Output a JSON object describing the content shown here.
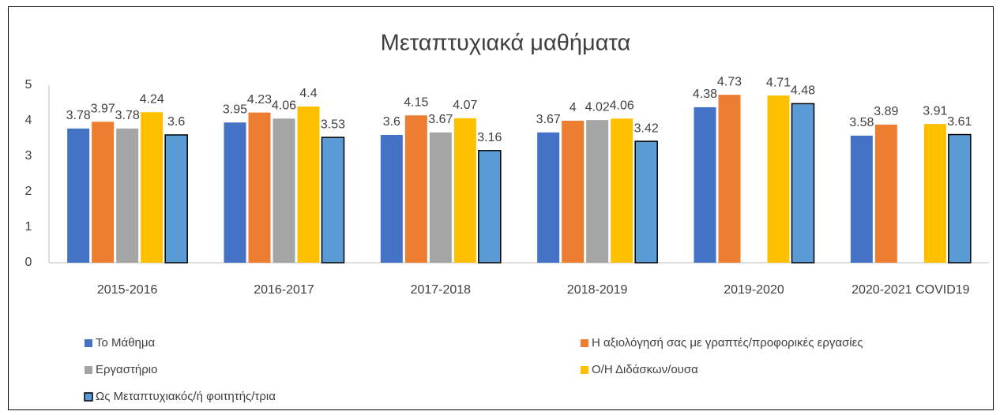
{
  "chart_data": {
    "type": "bar",
    "title": "Μεταπτυχιακά μαθήματα",
    "categories": [
      "2015-2016",
      "2016-2017",
      "2017-2018",
      "2018-2019",
      "2019-2020",
      "2020-2021 COVID19"
    ],
    "series": [
      {
        "name": "Το Μάθημα",
        "color": "#4472c4",
        "values": [
          3.78,
          3.95,
          3.6,
          3.67,
          4.38,
          3.58
        ]
      },
      {
        "name": "Η αξιολόγησή σας με γραπτές/προφορικές εργασίες",
        "color": "#ed7d31",
        "values": [
          3.97,
          4.23,
          4.15,
          4,
          4.73,
          3.89
        ]
      },
      {
        "name": "Εργαστήριο",
        "color": "#a5a5a5",
        "values": [
          3.78,
          4.06,
          3.67,
          4.02,
          null,
          null
        ]
      },
      {
        "name": "Ο/Η Διδάσκων/ουσα",
        "color": "#ffc000",
        "values": [
          4.24,
          4.4,
          4.07,
          4.06,
          4.71,
          3.91
        ]
      },
      {
        "name": "Ως Μεταπτυχιακός/ή φοιτητής/τρια",
        "color": "#5b9bd5",
        "edgecolor": "#000000",
        "values": [
          3.6,
          3.53,
          3.16,
          3.42,
          4.48,
          3.61
        ]
      }
    ],
    "ylim": [
      0,
      5
    ],
    "yticks": [
      0,
      1,
      2,
      3,
      4,
      5
    ],
    "grid": false,
    "legend": "bottom"
  }
}
